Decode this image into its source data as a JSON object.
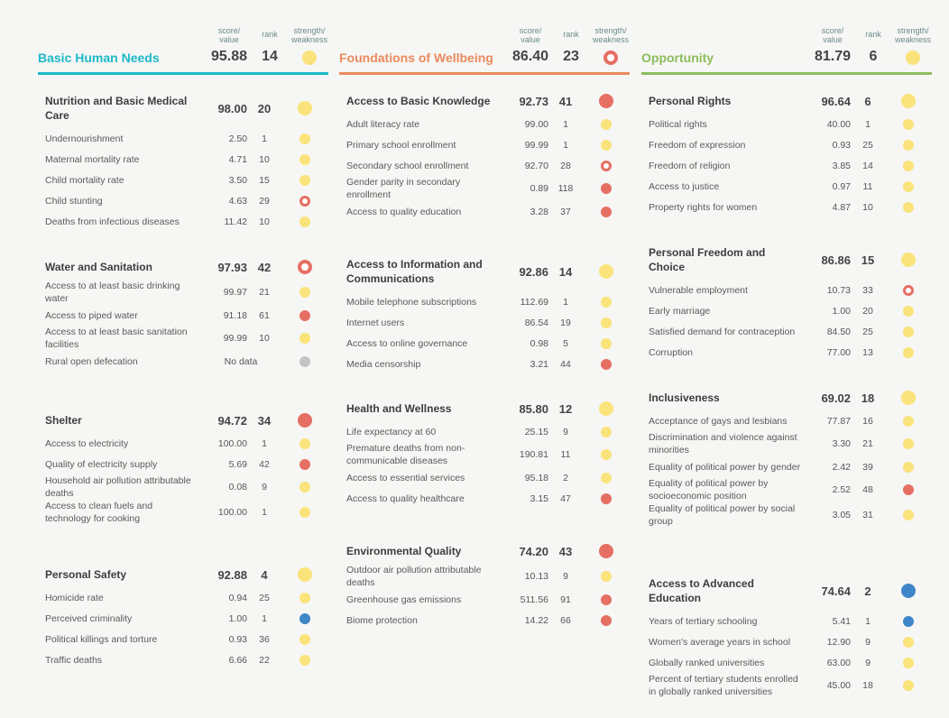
{
  "header_labels": {
    "score": "score/\nvalue",
    "rank": "rank",
    "sw": "strength/\nweakness"
  },
  "colors": {
    "basic": "#1cb9c8",
    "foundations": "#ea8a5e",
    "opportunity": "#8cbd5c",
    "strength": "#3f86c8",
    "weakness": "#e66f64",
    "neutral": "#fae37a",
    "nodata": "#c4c4c4"
  },
  "dimensions": [
    {
      "title": "Basic Human Needs",
      "score": "95.88",
      "rank": "14",
      "status": "yellow",
      "components": [
        {
          "name": "Nutrition and Basic Medical Care",
          "score": "98.00",
          "rank": "20",
          "status": "yellow",
          "indicators": [
            {
              "name": "Undernourishment",
              "score": "2.50",
              "rank": "1",
              "status": "yellow"
            },
            {
              "name": "Maternal mortality rate",
              "score": "4.71",
              "rank": "10",
              "status": "yellow"
            },
            {
              "name": "Child mortality rate",
              "score": "3.50",
              "rank": "15",
              "status": "yellow"
            },
            {
              "name": "Child stunting",
              "score": "4.63",
              "rank": "29",
              "status": "ring"
            },
            {
              "name": "Deaths from infectious diseases",
              "score": "11.42",
              "rank": "10",
              "status": "yellow"
            }
          ]
        },
        {
          "name": "Water and Sanitation",
          "score": "97.93",
          "rank": "42",
          "status": "ring",
          "indicators": [
            {
              "name": "Access to at least basic drinking water",
              "score": "99.97",
              "rank": "21",
              "status": "yellow"
            },
            {
              "name": "Access to piped water",
              "score": "91.18",
              "rank": "61",
              "status": "red"
            },
            {
              "name": "Access to at least basic sanitation facilities",
              "score": "99.99",
              "rank": "10",
              "status": "yellow"
            },
            {
              "name": "Rural open defecation",
              "nodata": "No data",
              "status": "gray"
            }
          ]
        },
        {
          "name": "Shelter",
          "score": "94.72",
          "rank": "34",
          "status": "red",
          "indicators": [
            {
              "name": "Access to electricity",
              "score": "100.00",
              "rank": "1",
              "status": "yellow"
            },
            {
              "name": "Quality of electricity supply",
              "score": "5.69",
              "rank": "42",
              "status": "red"
            },
            {
              "name": "Household air pollution attributable deaths",
              "score": "0.08",
              "rank": "9",
              "status": "yellow"
            },
            {
              "name": "Access to clean fuels and technology for cooking",
              "score": "100.00",
              "rank": "1",
              "status": "yellow"
            }
          ]
        },
        {
          "name": "Personal Safety",
          "score": "92.88",
          "rank": "4",
          "status": "yellow",
          "indicators": [
            {
              "name": "Homicide rate",
              "score": "0.94",
              "rank": "25",
              "status": "yellow"
            },
            {
              "name": "Perceived criminality",
              "score": "1.00",
              "rank": "1",
              "status": "blue"
            },
            {
              "name": "Political killings and torture",
              "score": "0.93",
              "rank": "36",
              "status": "yellow"
            },
            {
              "name": "Traffic deaths",
              "score": "6.66",
              "rank": "22",
              "status": "yellow"
            }
          ]
        }
      ]
    },
    {
      "title": "Foundations of Wellbeing",
      "score": "86.40",
      "rank": "23",
      "status": "ring",
      "components": [
        {
          "name": "Access to Basic Knowledge",
          "score": "92.73",
          "rank": "41",
          "status": "red",
          "indicators": [
            {
              "name": "Adult literacy rate",
              "score": "99.00",
              "rank": "1",
              "status": "yellow"
            },
            {
              "name": "Primary school enrollment",
              "score": "99.99",
              "rank": "1",
              "status": "yellow"
            },
            {
              "name": "Secondary school enrollment",
              "score": "92.70",
              "rank": "28",
              "status": "ring"
            },
            {
              "name": "Gender parity in secondary enrollment",
              "score": "0.89",
              "rank": "118",
              "status": "red"
            },
            {
              "name": "Access to quality education",
              "score": "3.28",
              "rank": "37",
              "status": "red"
            }
          ]
        },
        {
          "name": "Access to Information and Communications",
          "score": "92.86",
          "rank": "14",
          "status": "yellow",
          "indicators": [
            {
              "name": "Mobile telephone subscriptions",
              "score": "112.69",
              "rank": "1",
              "status": "yellow"
            },
            {
              "name": "Internet users",
              "score": "86.54",
              "rank": "19",
              "status": "yellow"
            },
            {
              "name": "Access to online governance",
              "score": "0.98",
              "rank": "5",
              "status": "yellow"
            },
            {
              "name": "Media censorship",
              "score": "3.21",
              "rank": "44",
              "status": "red"
            }
          ]
        },
        {
          "name": "Health and Wellness",
          "score": "85.80",
          "rank": "12",
          "status": "yellow",
          "indicators": [
            {
              "name": "Life expectancy at 60",
              "score": "25.15",
              "rank": "9",
              "status": "yellow"
            },
            {
              "name": "Premature deaths from non-communicable diseases",
              "score": "190.81",
              "rank": "11",
              "status": "yellow"
            },
            {
              "name": "Access to essential services",
              "score": "95.18",
              "rank": "2",
              "status": "yellow"
            },
            {
              "name": "Access to quality healthcare",
              "score": "3.15",
              "rank": "47",
              "status": "red"
            }
          ]
        },
        {
          "name": "Environmental Quality",
          "score": "74.20",
          "rank": "43",
          "status": "red",
          "indicators": [
            {
              "name": "Outdoor air pollution attributable deaths",
              "score": "10.13",
              "rank": "9",
              "status": "yellow"
            },
            {
              "name": "Greenhouse gas emissions",
              "score": "511.56",
              "rank": "91",
              "status": "red"
            },
            {
              "name": "Biome protection",
              "score": "14.22",
              "rank": "66",
              "status": "red"
            }
          ]
        }
      ]
    },
    {
      "title": "Opportunity",
      "score": "81.79",
      "rank": "6",
      "status": "yellow",
      "components": [
        {
          "name": "Personal Rights",
          "score": "96.64",
          "rank": "6",
          "status": "yellow",
          "indicators": [
            {
              "name": "Political rights",
              "score": "40.00",
              "rank": "1",
              "status": "yellow"
            },
            {
              "name": "Freedom of expression",
              "score": "0.93",
              "rank": "25",
              "status": "yellow"
            },
            {
              "name": "Freedom of religion",
              "score": "3.85",
              "rank": "14",
              "status": "yellow"
            },
            {
              "name": "Access to justice",
              "score": "0.97",
              "rank": "11",
              "status": "yellow"
            },
            {
              "name": "Property rights for women",
              "score": "4.87",
              "rank": "10",
              "status": "yellow"
            }
          ]
        },
        {
          "name": "Personal Freedom and Choice",
          "score": "86.86",
          "rank": "15",
          "status": "yellow",
          "indicators": [
            {
              "name": "Vulnerable employment",
              "score": "10.73",
              "rank": "33",
              "status": "ring"
            },
            {
              "name": "Early marriage",
              "score": "1.00",
              "rank": "20",
              "status": "yellow"
            },
            {
              "name": "Satisfied demand for contraception",
              "score": "84.50",
              "rank": "25",
              "status": "yellow"
            },
            {
              "name": "Corruption",
              "score": "77.00",
              "rank": "13",
              "status": "yellow"
            }
          ]
        },
        {
          "name": "Inclusiveness",
          "score": "69.02",
          "rank": "18",
          "status": "yellow",
          "indicators": [
            {
              "name": "Acceptance of gays and lesbians",
              "score": "77.87",
              "rank": "16",
              "status": "yellow"
            },
            {
              "name": "Discrimination and violence against minorities",
              "score": "3.30",
              "rank": "21",
              "status": "yellow"
            },
            {
              "name": "Equality of political power by gender",
              "score": "2.42",
              "rank": "39",
              "status": "yellow"
            },
            {
              "name": "Equality of political power by socioeconomic position",
              "score": "2.52",
              "rank": "48",
              "status": "red"
            },
            {
              "name": "Equality of political power by social group",
              "score": "3.05",
              "rank": "31",
              "status": "yellow"
            }
          ]
        },
        {
          "name": "Access to Advanced Education",
          "score": "74.64",
          "rank": "2",
          "status": "blue",
          "indicators": [
            {
              "name": "Years of tertiary schooling",
              "score": "5.41",
              "rank": "1",
              "status": "blue"
            },
            {
              "name": "Women's average years in school",
              "score": "12.90",
              "rank": "9",
              "status": "yellow"
            },
            {
              "name": "Globally ranked universities",
              "score": "63.00",
              "rank": "9",
              "status": "yellow"
            },
            {
              "name": "Percent of tertiary students enrolled in globally ranked universities",
              "score": "45.00",
              "rank": "18",
              "status": "yellow"
            }
          ]
        }
      ]
    }
  ]
}
